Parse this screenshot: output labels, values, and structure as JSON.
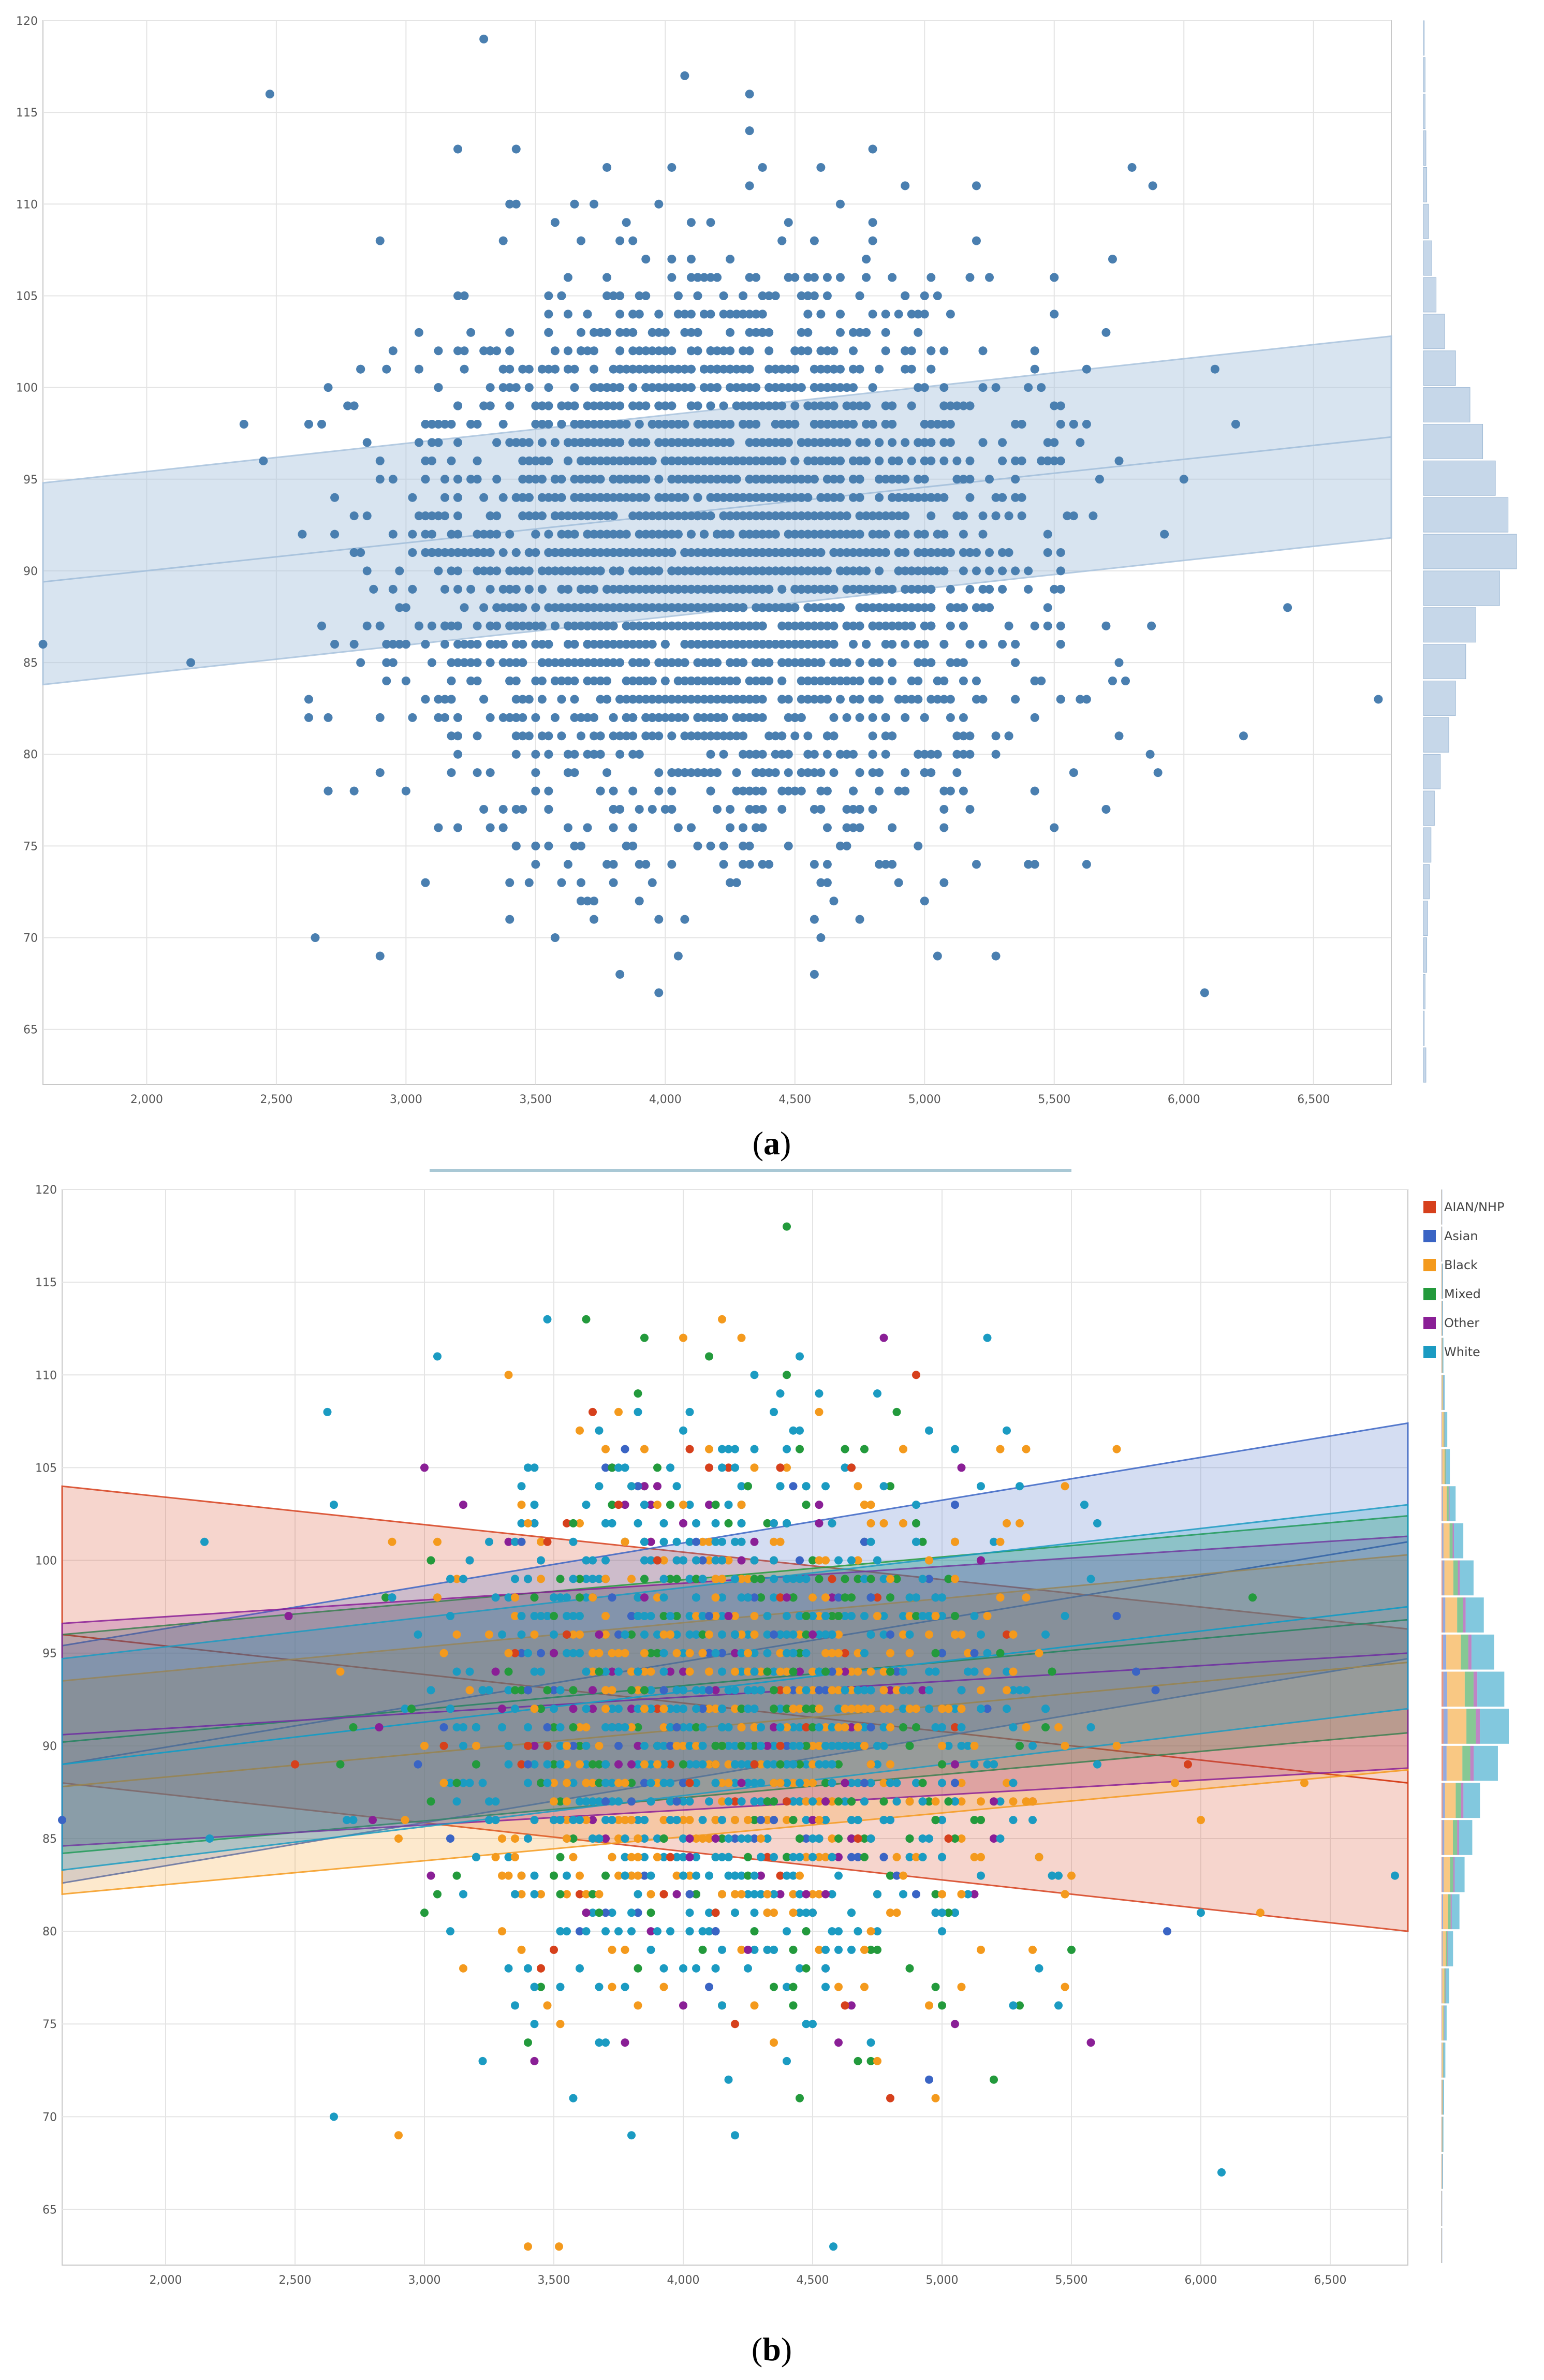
{
  "chart_data": [
    {
      "type": "scatter",
      "caption_letter": "a",
      "title": "",
      "xlabel": "",
      "ylabel": "",
      "xlim": [
        1600,
        6800
      ],
      "ylim": [
        62,
        120
      ],
      "x_ticks": [
        "2,000",
        "2,500",
        "3,000",
        "3,500",
        "4,000",
        "4,500",
        "5,000",
        "5,500",
        "6,000",
        "6,500"
      ],
      "x_tick_values": [
        2000,
        2500,
        3000,
        3500,
        4000,
        4500,
        5000,
        5500,
        6000,
        6500
      ],
      "y_ticks": [
        "65",
        "70",
        "75",
        "80",
        "85",
        "90",
        "95",
        "100",
        "105",
        "110",
        "115",
        "120"
      ],
      "y_tick_values": [
        65,
        70,
        75,
        80,
        85,
        90,
        95,
        100,
        105,
        110,
        115,
        120
      ],
      "grid": true,
      "color": "#4a7fb0",
      "band_color": "#a9c3dd",
      "point_cloud": {
        "x_center": 4200,
        "x_sd": 560,
        "y_center": 91,
        "y_sd": 7.5,
        "count": 3200
      },
      "outliers": [
        [
          1600,
          86
        ],
        [
          2170,
          85
        ],
        [
          2650,
          70
        ],
        [
          2900,
          69
        ],
        [
          6080,
          67
        ],
        [
          6750,
          83
        ],
        [
          6400,
          88
        ],
        [
          6200,
          98
        ],
        [
          6120,
          101
        ],
        [
          5880,
          111
        ],
        [
          6230,
          81
        ],
        [
          5870,
          80
        ]
      ],
      "regression": {
        "x": [
          1600,
          6800
        ],
        "y": [
          89.4,
          97.3
        ],
        "lower": [
          83.8,
          91.8
        ],
        "upper": [
          94.8,
          102.8
        ]
      },
      "histogram": {
        "bins": [
          63,
          65,
          67,
          69,
          71,
          73,
          75,
          77,
          79,
          81,
          83,
          85,
          87,
          89,
          91,
          93,
          95,
          97,
          99,
          101,
          103,
          105,
          107,
          109,
          111,
          113,
          115,
          117,
          119
        ],
        "counts": [
          3,
          1,
          2,
          4,
          5,
          7,
          9,
          13,
          20,
          30,
          38,
          50,
          62,
          90,
          110,
          100,
          85,
          70,
          55,
          38,
          25,
          15,
          10,
          6,
          4,
          3,
          2,
          2,
          1
        ]
      }
    },
    {
      "type": "scatter",
      "caption_letter": "b",
      "title": "",
      "xlabel": "",
      "ylabel": "",
      "xlim": [
        1600,
        6800
      ],
      "ylim": [
        62,
        120
      ],
      "x_ticks": [
        "2,000",
        "2,500",
        "3,000",
        "3,500",
        "4,000",
        "4,500",
        "5,000",
        "5,500",
        "6,000",
        "6,500"
      ],
      "x_tick_values": [
        2000,
        2500,
        3000,
        3500,
        4000,
        4500,
        5000,
        5500,
        6000,
        6500
      ],
      "y_ticks": [
        "65",
        "70",
        "75",
        "80",
        "85",
        "90",
        "95",
        "100",
        "105",
        "110",
        "115",
        "120"
      ],
      "y_tick_values": [
        65,
        70,
        75,
        80,
        85,
        90,
        95,
        100,
        105,
        110,
        115,
        120
      ],
      "grid": true,
      "legend_position": "top-right",
      "point_cloud": {
        "x_center": 4200,
        "x_sd": 560,
        "y_center": 91,
        "y_sd": 7.5,
        "count": 2000
      },
      "series": [
        {
          "name": "AIAN/NHP",
          "color": "#d6401c",
          "weight": 0.03,
          "regression": {
            "x": [
              1600,
              6800
            ],
            "y": [
              96.0,
              88.0
            ],
            "lower": [
              88.0,
              80.0
            ],
            "upper": [
              104.0,
              96.3
            ]
          }
        },
        {
          "name": "Asian",
          "color": "#3a64c4",
          "weight": 0.06,
          "regression": {
            "x": [
              1600,
              6800
            ],
            "y": [
              89.0,
              101.0
            ],
            "lower": [
              82.6,
              94.7
            ],
            "upper": [
              95.4,
              107.4
            ]
          }
        },
        {
          "name": "Black",
          "color": "#f49a1d",
          "weight": 0.28,
          "regression": {
            "x": [
              1600,
              6800
            ],
            "y": [
              87.8,
              94.5
            ],
            "lower": [
              82.0,
              88.7
            ],
            "upper": [
              93.5,
              100.3
            ]
          }
        },
        {
          "name": "Mixed",
          "color": "#239a3c",
          "weight": 0.14,
          "regression": {
            "x": [
              1600,
              6800
            ],
            "y": [
              90.2,
              96.8
            ],
            "lower": [
              84.2,
              90.7
            ],
            "upper": [
              96.0,
              102.4
            ]
          }
        },
        {
          "name": "Other",
          "color": "#8a1f96",
          "weight": 0.06,
          "regression": {
            "x": [
              1600,
              6800
            ],
            "y": [
              90.6,
              95.0
            ],
            "lower": [
              84.6,
              88.8
            ],
            "upper": [
              96.6,
              101.3
            ]
          }
        },
        {
          "name": "White",
          "color": "#1b9bc2",
          "weight": 0.43,
          "regression": {
            "x": [
              1600,
              6800
            ],
            "y": [
              89.0,
              97.5
            ],
            "lower": [
              83.3,
              92.0
            ],
            "upper": [
              94.7,
              103.0
            ]
          }
        }
      ],
      "outliers": [
        [
          1600,
          86
        ],
        [
          2170,
          85
        ],
        [
          2650,
          70
        ],
        [
          2900,
          69
        ],
        [
          6080,
          67
        ],
        [
          6750,
          83
        ],
        [
          6400,
          88
        ],
        [
          6200,
          98
        ],
        [
          6230,
          81
        ],
        [
          5870,
          80
        ],
        [
          3400,
          63
        ],
        [
          3520,
          63
        ],
        [
          4580,
          63
        ]
      ],
      "histogram": {
        "bins": [
          63,
          65,
          67,
          69,
          71,
          73,
          75,
          77,
          79,
          81,
          83,
          85,
          87,
          89,
          91,
          93,
          95,
          97,
          99,
          101,
          103,
          105,
          107,
          109,
          111,
          113,
          115,
          117,
          119
        ],
        "counts": [
          1,
          1,
          2,
          3,
          4,
          6,
          8,
          12,
          18,
          28,
          36,
          48,
          60,
          88,
          105,
          98,
          82,
          66,
          50,
          34,
          22,
          13,
          9,
          5,
          3,
          2,
          2,
          1,
          1
        ]
      }
    }
  ]
}
